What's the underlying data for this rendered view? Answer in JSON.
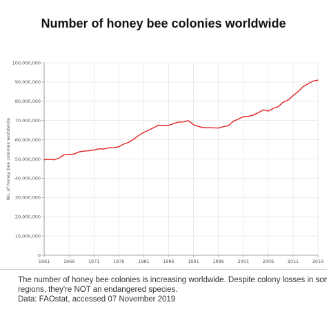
{
  "title": "Number of honey bee colonies worldwide",
  "caption": {
    "line1": "The number of honey bee colonies  is increasing worldwide. Despite colony losses in some",
    "line2": "regions, they're NOT an endangered species.",
    "line3": "Data: FAOstat, accessed 07 November 2019"
  },
  "chart_data": {
    "type": "line",
    "title": "Number of honey bee colonies worldwide",
    "xlabel": "",
    "ylabel": "No. of honey bee colonies worldwide",
    "xlim": [
      1961,
      2016
    ],
    "ylim": [
      0,
      100000000
    ],
    "grid": true,
    "line_color": "#e02020",
    "x_tick_labels": [
      "1961",
      "1966",
      "1971",
      "1976",
      "1981",
      "1986",
      "1991",
      "1996",
      "2001",
      "2006",
      "2011",
      "2016"
    ],
    "y_tick_labels": [
      "0",
      "10,000,000",
      "20,000,000",
      "30,000,000",
      "40,000,000",
      "50,000,000",
      "60,000,000",
      "70,000,000",
      "80,000,000",
      "90,000,000",
      "100,000,000"
    ],
    "series": [
      {
        "x": [
          1961,
          1962,
          1963,
          1964,
          1965,
          1966,
          1967,
          1968,
          1969,
          1970,
          1971,
          1972,
          1973,
          1974,
          1975,
          1976,
          1977,
          1978,
          1979,
          1980,
          1981,
          1982,
          1983,
          1984,
          1985,
          1986,
          1987,
          1988,
          1989,
          1990,
          1991,
          1992,
          1993,
          1994,
          1995,
          1996,
          1997,
          1998,
          1999,
          2000,
          2001,
          2002,
          2003,
          2004,
          2005,
          2006,
          2007,
          2008,
          2009,
          2010,
          2011,
          2012,
          2013,
          2014,
          2015,
          2016
        ],
        "y": [
          49600000,
          49900000,
          49600000,
          50500000,
          52200000,
          52400000,
          52600000,
          53700000,
          54100000,
          54300000,
          54700000,
          55300000,
          55200000,
          55800000,
          55900000,
          56400000,
          57800000,
          58700000,
          60300000,
          62300000,
          63800000,
          65000000,
          66300000,
          67600000,
          67400000,
          67500000,
          68400000,
          69200000,
          69300000,
          69900000,
          67800000,
          66900000,
          66300000,
          66300000,
          66200000,
          66100000,
          66800000,
          67300000,
          69600000,
          70800000,
          72000000,
          72200000,
          72800000,
          74100000,
          75500000,
          74900000,
          76300000,
          77200000,
          79500000,
          80600000,
          83000000,
          85000000,
          87600000,
          89100000,
          90500000,
          91000000
        ]
      }
    ]
  }
}
